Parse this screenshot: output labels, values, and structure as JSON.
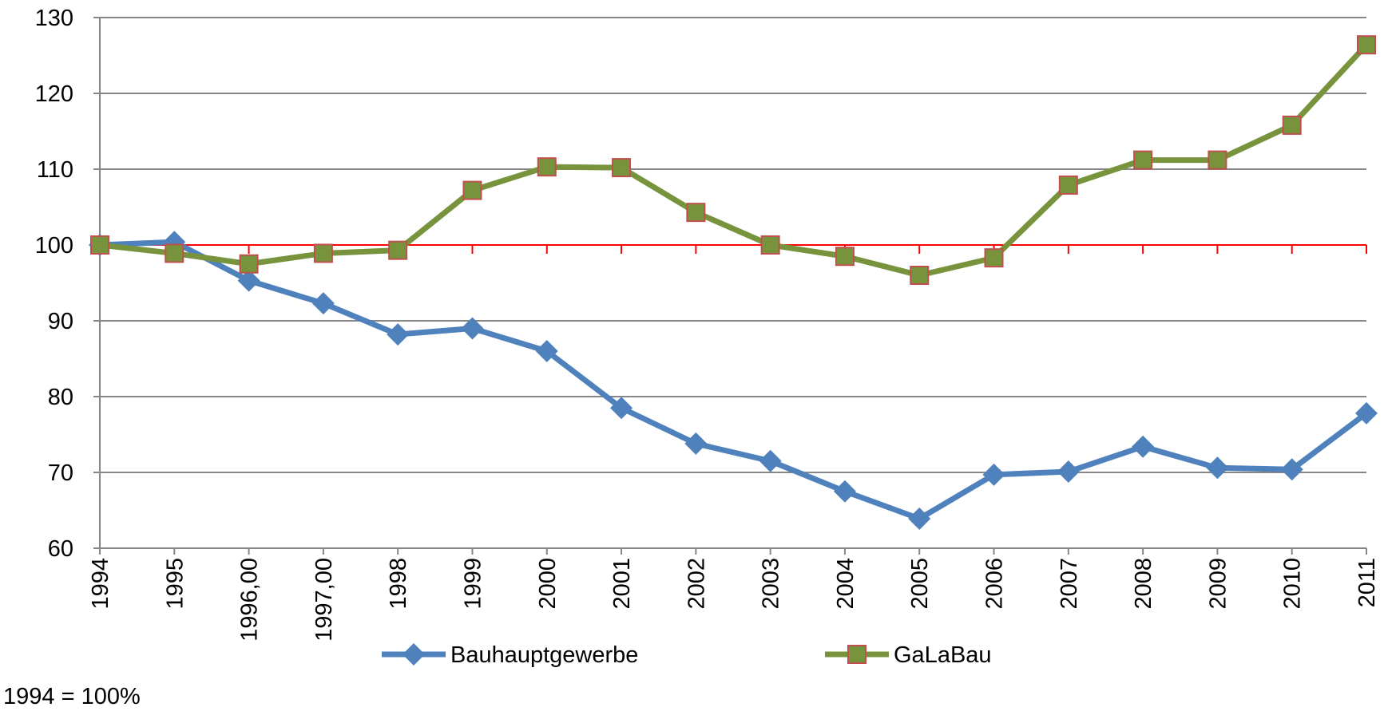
{
  "chart_data": {
    "type": "line",
    "note": "1994 = 100%",
    "categories": [
      "1994",
      "1995",
      "1996,00",
      "1997,00",
      "1998",
      "1999",
      "2000",
      "2001",
      "2002",
      "2003",
      "2004",
      "2005",
      "2006",
      "2007",
      "2008",
      "2009",
      "2010",
      "2011"
    ],
    "series": [
      {
        "name": "Bauhauptgewerbe",
        "color": "#4f81bd",
        "marker": "diamond",
        "values": [
          100,
          100.4,
          95.3,
          92.3,
          88.2,
          89,
          86,
          78.5,
          73.8,
          71.5,
          67.5,
          63.9,
          69.7,
          70.1,
          73.4,
          70.6,
          70.4,
          77.8
        ]
      },
      {
        "name": "GaLaBau",
        "color": "#77933c",
        "marker": "square",
        "values": [
          100,
          98.9,
          97.5,
          98.9,
          99.3,
          107.2,
          110.3,
          110.2,
          104.3,
          100,
          98.5,
          96,
          98.3,
          107.9,
          111.2,
          111.2,
          115.8,
          126.4
        ]
      }
    ],
    "ylim": [
      60,
      130
    ],
    "yticks": [
      60,
      70,
      80,
      90,
      100,
      110,
      120,
      130
    ],
    "grid": true,
    "reference_line": {
      "value": 100,
      "color": "#ff0000"
    },
    "legend": "bottom"
  }
}
